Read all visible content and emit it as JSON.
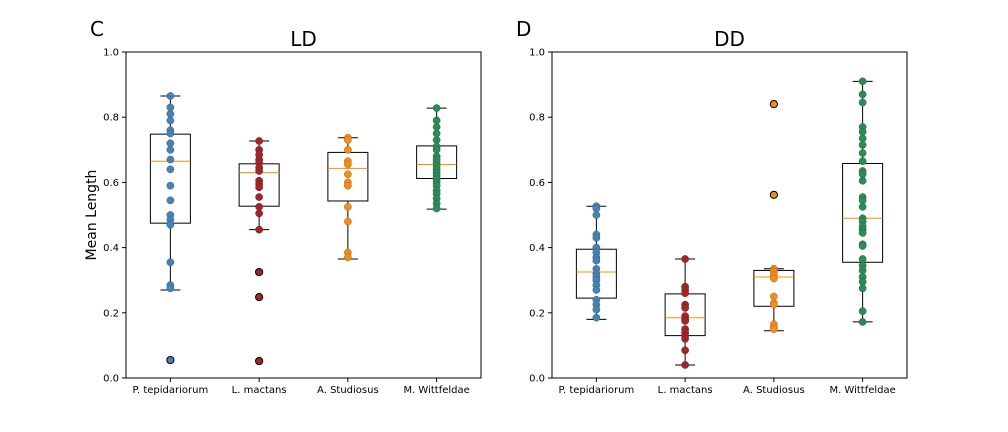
{
  "chart_data": [
    {
      "type": "box",
      "panel_label": "C",
      "title": "LD",
      "ylabel": "Mean Length",
      "ylim": [
        0,
        1.0
      ],
      "yticks": [
        "0.0",
        "0.2",
        "0.4",
        "0.6",
        "0.8",
        "1.0"
      ],
      "categories": [
        "P. tepidariorum",
        "L. mactans",
        "A. Studiosus",
        "M. Wittfeldae"
      ],
      "colors": [
        "#4682b4",
        "#a0262a",
        "#f28c1c",
        "#2e8b57"
      ],
      "boxes": [
        {
          "whislo": 0.27,
          "q1": 0.475,
          "med": 0.665,
          "q3": 0.748,
          "whishi": 0.865,
          "fliers": [
            0.055
          ]
        },
        {
          "whislo": 0.455,
          "q1": 0.527,
          "med": 0.63,
          "q3": 0.657,
          "whishi": 0.727,
          "fliers": [
            0.325,
            0.248,
            0.052
          ]
        },
        {
          "whislo": 0.365,
          "q1": 0.543,
          "med": 0.643,
          "q3": 0.692,
          "whishi": 0.737,
          "fliers": []
        },
        {
          "whislo": 0.518,
          "q1": 0.612,
          "med": 0.655,
          "q3": 0.712,
          "whishi": 0.828,
          "fliers": []
        }
      ],
      "points": [
        [
          0.865,
          0.83,
          0.81,
          0.79,
          0.76,
          0.75,
          0.72,
          0.7,
          0.67,
          0.64,
          0.59,
          0.545,
          0.5,
          0.485,
          0.47,
          0.355,
          0.285,
          0.275,
          0.055
        ],
        [
          0.727,
          0.7,
          0.685,
          0.67,
          0.66,
          0.645,
          0.635,
          0.605,
          0.595,
          0.585,
          0.555,
          0.525,
          0.505,
          0.455,
          0.325,
          0.248,
          0.052
        ],
        [
          0.737,
          0.73,
          0.7,
          0.665,
          0.655,
          0.625,
          0.6,
          0.59,
          0.525,
          0.48,
          0.385,
          0.37
        ],
        [
          0.828,
          0.79,
          0.77,
          0.75,
          0.73,
          0.71,
          0.7,
          0.68,
          0.67,
          0.66,
          0.65,
          0.64,
          0.63,
          0.62,
          0.61,
          0.6,
          0.59,
          0.575,
          0.565,
          0.55,
          0.535,
          0.52
        ]
      ]
    },
    {
      "type": "box",
      "panel_label": "D",
      "title": "DD",
      "ylabel": "",
      "ylim": [
        0,
        1.0
      ],
      "yticks": [
        "0.0",
        "0.2",
        "0.4",
        "0.6",
        "0.8",
        "1.0"
      ],
      "categories": [
        "P. tepidariorum",
        "L. mactans",
        "A. Studiosus",
        "M. Wittfeldae"
      ],
      "colors": [
        "#4682b4",
        "#a0262a",
        "#f28c1c",
        "#2e8b57"
      ],
      "boxes": [
        {
          "whislo": 0.18,
          "q1": 0.245,
          "med": 0.325,
          "q3": 0.395,
          "whishi": 0.527,
          "fliers": []
        },
        {
          "whislo": 0.04,
          "q1": 0.13,
          "med": 0.185,
          "q3": 0.258,
          "whishi": 0.365,
          "fliers": []
        },
        {
          "whislo": 0.145,
          "q1": 0.22,
          "med": 0.31,
          "q3": 0.33,
          "whishi": 0.335,
          "fliers": [
            0.84,
            0.562
          ]
        },
        {
          "whislo": 0.172,
          "q1": 0.355,
          "med": 0.49,
          "q3": 0.658,
          "whishi": 0.91,
          "fliers": []
        }
      ],
      "points": [
        [
          0.527,
          0.52,
          0.5,
          0.44,
          0.43,
          0.4,
          0.385,
          0.37,
          0.36,
          0.335,
          0.32,
          0.31,
          0.3,
          0.285,
          0.27,
          0.24,
          0.225,
          0.21,
          0.185
        ],
        [
          0.365,
          0.28,
          0.27,
          0.26,
          0.225,
          0.215,
          0.19,
          0.18,
          0.175,
          0.15,
          0.14,
          0.13,
          0.12,
          0.085,
          0.04
        ],
        [
          0.84,
          0.562,
          0.335,
          0.33,
          0.325,
          0.315,
          0.305,
          0.25,
          0.23,
          0.225,
          0.165,
          0.155,
          0.15
        ],
        [
          0.91,
          0.87,
          0.845,
          0.77,
          0.755,
          0.735,
          0.715,
          0.69,
          0.665,
          0.635,
          0.625,
          0.605,
          0.555,
          0.545,
          0.525,
          0.49,
          0.48,
          0.465,
          0.455,
          0.445,
          0.41,
          0.405,
          0.365,
          0.345,
          0.33,
          0.31,
          0.295,
          0.275,
          0.205,
          0.172
        ]
      ]
    }
  ]
}
